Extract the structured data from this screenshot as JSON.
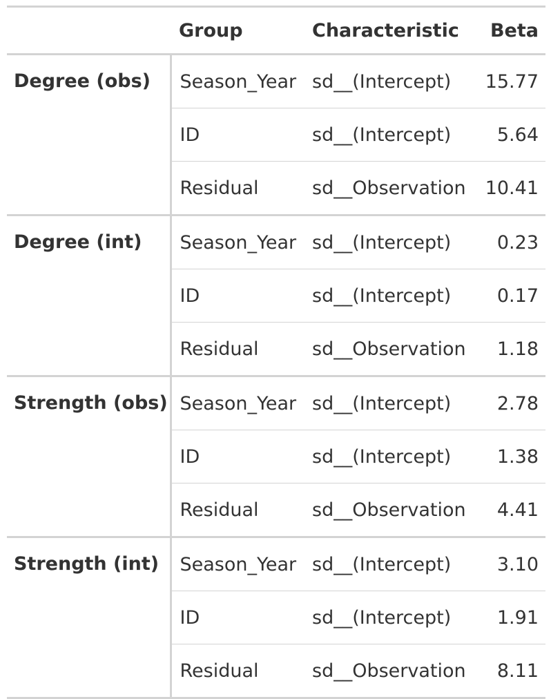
{
  "table": {
    "headers": {
      "group_label": "",
      "group": "Group",
      "characteristic": "Characteristic",
      "beta": "Beta"
    },
    "groups": [
      {
        "label": "Degree (obs)",
        "rows": [
          {
            "group": "Season_Year",
            "characteristic": "sd__(Intercept)",
            "beta": "15.77"
          },
          {
            "group": "ID",
            "characteristic": "sd__(Intercept)",
            "beta": "5.64"
          },
          {
            "group": "Residual",
            "characteristic": "sd__Observation",
            "beta": "10.41"
          }
        ]
      },
      {
        "label": "Degree (int)",
        "rows": [
          {
            "group": "Season_Year",
            "characteristic": "sd__(Intercept)",
            "beta": "0.23"
          },
          {
            "group": "ID",
            "characteristic": "sd__(Intercept)",
            "beta": "0.17"
          },
          {
            "group": "Residual",
            "characteristic": "sd__Observation",
            "beta": "1.18"
          }
        ]
      },
      {
        "label": "Strength (obs)",
        "rows": [
          {
            "group": "Season_Year",
            "characteristic": "sd__(Intercept)",
            "beta": "2.78"
          },
          {
            "group": "ID",
            "characteristic": "sd__(Intercept)",
            "beta": "1.38"
          },
          {
            "group": "Residual",
            "characteristic": "sd__Observation",
            "beta": "4.41"
          }
        ]
      },
      {
        "label": "Strength (int)",
        "rows": [
          {
            "group": "Season_Year",
            "characteristic": "sd__(Intercept)",
            "beta": "3.10"
          },
          {
            "group": "ID",
            "characteristic": "sd__(Intercept)",
            "beta": "1.91"
          },
          {
            "group": "Residual",
            "characteristic": "sd__Observation",
            "beta": "8.11"
          }
        ]
      }
    ]
  }
}
